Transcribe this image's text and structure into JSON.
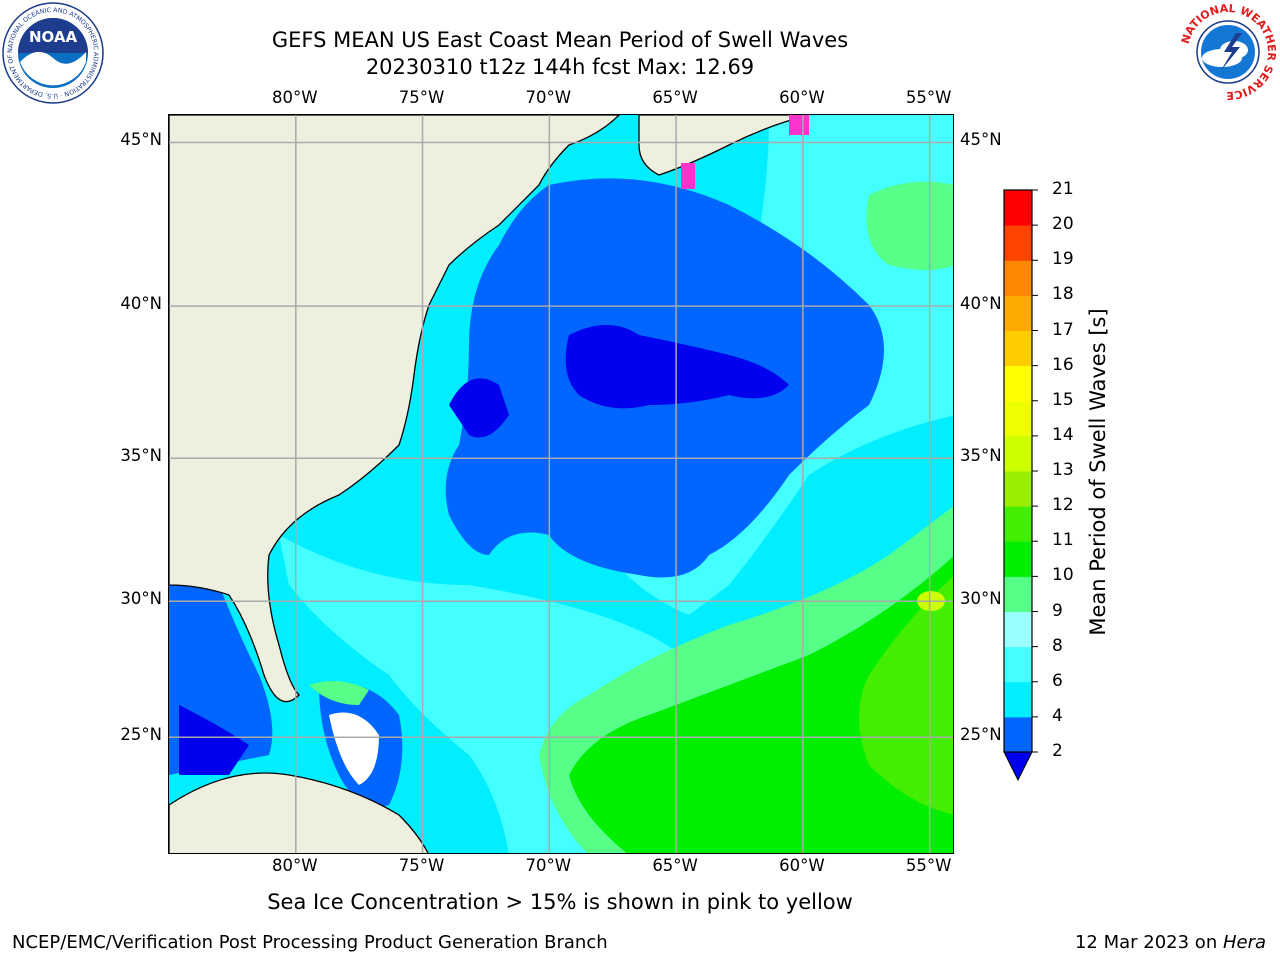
{
  "header": {
    "title_line1": "GEFS MEAN US East Coast Mean Period of Swell Waves",
    "title_line2": "20230310 t12z 144h fcst   Max: 12.69"
  },
  "logos": {
    "noaa_text": "NOAA",
    "noaa_ring": "NATIONAL OCEANIC AND ATMOSPHERIC ADMINISTRATION · U.S. DEPARTMENT OF COMMERCE",
    "nws_ring": "NATIONAL WEATHER SERVICE"
  },
  "map": {
    "lon_range": [
      -85,
      -54
    ],
    "lat_range": [
      20.5,
      45.8
    ],
    "lon_ticks": [
      "80°W",
      "75°W",
      "70°W",
      "65°W",
      "60°W",
      "55°W"
    ],
    "lat_ticks": [
      "45°N",
      "40°N",
      "35°N",
      "30°N",
      "25°N"
    ],
    "gridlines": true,
    "colors": {
      "land": "#efefdf",
      "coastline": "#000000",
      "grid": "#aaaaaa",
      "sea_ice": "#ff33cc"
    }
  },
  "colorbar": {
    "title": "Mean Period of Swell Waves [s]",
    "labels": [
      "21",
      "20",
      "19",
      "18",
      "17",
      "16",
      "15",
      "14",
      "13",
      "12",
      "11",
      "10",
      "9",
      "8",
      "6",
      "4",
      "2"
    ],
    "levels": [
      2,
      4,
      6,
      8,
      9,
      10,
      11,
      12,
      13,
      14,
      15,
      16,
      17,
      18,
      19,
      20,
      21
    ],
    "colors": [
      "#0066ff",
      "#00eeff",
      "#44ffff",
      "#99ffff",
      "#55ff88",
      "#00ee00",
      "#44ee00",
      "#99ee00",
      "#ccff00",
      "#eeff00",
      "#ffff00",
      "#ffcc00",
      "#ffaa00",
      "#ff8800",
      "#ff4400",
      "#ff0000"
    ],
    "under_color": "#0000ee"
  },
  "footer": {
    "ice_note": "Sea Ice Concentration > 15% is shown in pink to yellow",
    "left": "NCEP/EMC/Verification Post Processing Product Generation Branch",
    "date": "12 Mar 2023 on ",
    "host": "Hera"
  }
}
